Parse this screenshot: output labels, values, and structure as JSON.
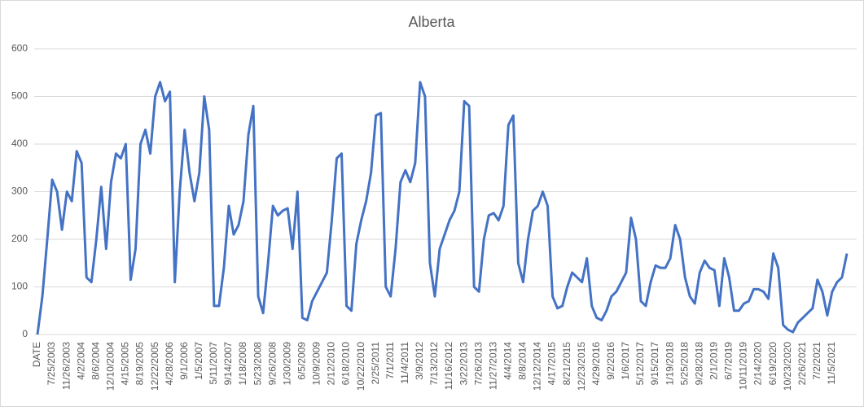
{
  "chart_data": {
    "type": "line",
    "title": "Alberta",
    "categories": [
      "DATE",
      null,
      null,
      "7/25/2003",
      null,
      null,
      "11/26/2003",
      null,
      null,
      "4/2/2004",
      null,
      null,
      "8/6/2004",
      null,
      null,
      "12/10/2004",
      null,
      null,
      "4/15/2005",
      null,
      null,
      "8/19/2005",
      null,
      null,
      "12/22/2005",
      null,
      null,
      "4/28/2006",
      null,
      null,
      "9/1/2006",
      null,
      null,
      "1/5/2007",
      null,
      null,
      "5/11/2007",
      null,
      null,
      "9/14/2007",
      null,
      null,
      "1/18/2008",
      null,
      null,
      "5/23/2008",
      null,
      null,
      "9/26/2008",
      null,
      null,
      "1/30/2009",
      null,
      null,
      "6/5/2009",
      null,
      null,
      "10/9/2009",
      null,
      null,
      "2/12/2010",
      null,
      null,
      "6/18/2010",
      null,
      null,
      "10/22/2010",
      null,
      null,
      "2/25/2011",
      null,
      null,
      "7/1/2011",
      null,
      null,
      "11/4/2011",
      null,
      null,
      "3/9/2012",
      null,
      null,
      "7/13/2012",
      null,
      null,
      "11/16/2012",
      null,
      null,
      "3/22/2013",
      null,
      null,
      "7/26/2013",
      null,
      null,
      "11/27/2013",
      null,
      null,
      "4/4/2014",
      null,
      null,
      "8/8/2014",
      null,
      null,
      "12/12/2014",
      null,
      null,
      "4/17/2015",
      null,
      null,
      "8/21/2015",
      null,
      null,
      "12/23/2015",
      null,
      null,
      "4/29/2016",
      null,
      null,
      "9/2/2016",
      null,
      null,
      "1/6/2017",
      null,
      null,
      "5/12/2017",
      null,
      null,
      "9/15/2017",
      null,
      null,
      "1/19/2018",
      null,
      null,
      "5/25/2018",
      null,
      null,
      "9/28/2018",
      null,
      null,
      "2/1/2019",
      null,
      null,
      "6/7/2019",
      null,
      null,
      "10/11/2019",
      null,
      null,
      "2/14/2020",
      null,
      null,
      "6/19/2020",
      null,
      null,
      "10/23/2020",
      null,
      null,
      "2/26/2021",
      null,
      null,
      "7/2/2021",
      null,
      null,
      "11/5/2021",
      null,
      null,
      null
    ],
    "values": [
      0,
      80,
      200,
      325,
      300,
      220,
      300,
      280,
      385,
      360,
      120,
      110,
      200,
      310,
      180,
      320,
      380,
      370,
      400,
      115,
      180,
      400,
      430,
      380,
      500,
      530,
      490,
      510,
      110,
      300,
      430,
      340,
      280,
      340,
      500,
      430,
      60,
      60,
      140,
      270,
      210,
      230,
      280,
      420,
      480,
      80,
      45,
      150,
      270,
      250,
      260,
      265,
      180,
      300,
      35,
      30,
      70,
      90,
      110,
      130,
      240,
      370,
      380,
      60,
      50,
      190,
      240,
      280,
      340,
      460,
      465,
      100,
      80,
      180,
      320,
      345,
      320,
      360,
      530,
      500,
      150,
      80,
      180,
      210,
      240,
      260,
      300,
      490,
      480,
      100,
      90,
      200,
      250,
      255,
      240,
      270,
      440,
      460,
      150,
      110,
      200,
      260,
      270,
      300,
      270,
      80,
      55,
      60,
      100,
      130,
      120,
      110,
      160,
      60,
      35,
      30,
      50,
      80,
      90,
      110,
      130,
      245,
      200,
      70,
      60,
      110,
      145,
      140,
      140,
      160,
      230,
      200,
      120,
      80,
      65,
      130,
      155,
      140,
      135,
      60,
      160,
      120,
      50,
      50,
      65,
      70,
      95,
      95,
      90,
      75,
      170,
      140,
      20,
      10,
      5,
      25,
      35,
      45,
      55,
      115,
      90,
      40,
      90,
      110,
      120,
      170
    ],
    "color": "#4472c4",
    "ylim": [
      0,
      600
    ],
    "yticks": [
      0,
      100,
      200,
      300,
      400,
      500,
      600
    ],
    "grid": true
  }
}
